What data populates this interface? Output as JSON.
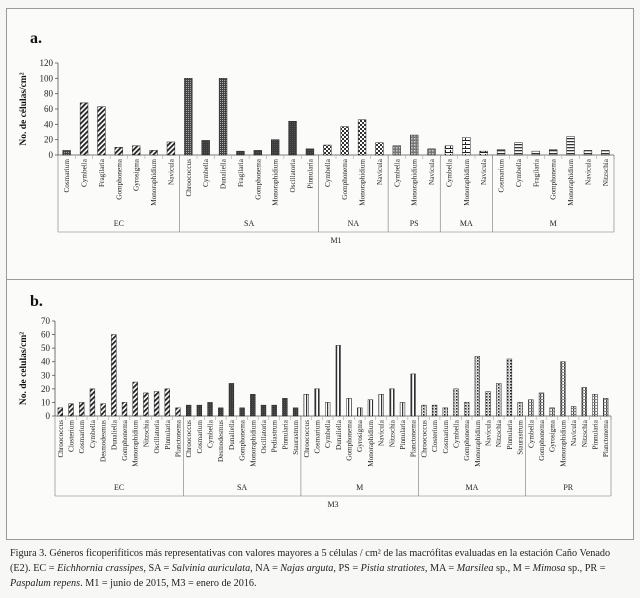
{
  "chart_data": [
    {
      "type": "bar",
      "panel_label": "a.",
      "ylabel": "No. de células/cm²",
      "ylim": [
        0,
        120
      ],
      "yticks": [
        0,
        20,
        40,
        60,
        80,
        100,
        120
      ],
      "grid": false,
      "outer_group": "M1",
      "groups": [
        {
          "name": "EC",
          "bars": [
            {
              "label": "Cosmarium",
              "value": 6,
              "pattern": "dots"
            },
            {
              "label": "Cymbella",
              "value": 68,
              "pattern": "diagonal"
            },
            {
              "label": "Fragilaria",
              "value": 63,
              "pattern": "diagonal"
            },
            {
              "label": "Gomphonema",
              "value": 10,
              "pattern": "diagonal"
            },
            {
              "label": "Gyrosigma",
              "value": 12,
              "pattern": "diagonal"
            },
            {
              "label": "Monoraphidium",
              "value": 6,
              "pattern": "diagonal"
            },
            {
              "label": "Navicula",
              "value": 17,
              "pattern": "diagonal"
            }
          ]
        },
        {
          "name": "SA",
          "bars": [
            {
              "label": "Chroococcus",
              "value": 100,
              "pattern": "dots"
            },
            {
              "label": "Cymbella",
              "value": 19,
              "pattern": "solid"
            },
            {
              "label": "Dunaliella",
              "value": 100,
              "pattern": "dots"
            },
            {
              "label": "Fragilaria",
              "value": 5,
              "pattern": "solid"
            },
            {
              "label": "Gomphonema",
              "value": 6,
              "pattern": "solid"
            },
            {
              "label": "Monoraphidium",
              "value": 20,
              "pattern": "solid"
            },
            {
              "label": "Oscillatoria",
              "value": 44,
              "pattern": "solid"
            },
            {
              "label": "Pinnularia",
              "value": 8,
              "pattern": "solid"
            }
          ]
        },
        {
          "name": "NA",
          "bars": [
            {
              "label": "Cymbella",
              "value": 13,
              "pattern": "checker"
            },
            {
              "label": "Gomphonema",
              "value": 37,
              "pattern": "checker"
            },
            {
              "label": "Monoraphidium",
              "value": 46,
              "pattern": "checker"
            },
            {
              "label": "Navicula",
              "value": 16,
              "pattern": "checker"
            }
          ]
        },
        {
          "name": "PS",
          "bars": [
            {
              "label": "Cymbella",
              "value": 12,
              "pattern": "grid"
            },
            {
              "label": "Monoraphidium",
              "value": 26,
              "pattern": "grid"
            },
            {
              "label": "Navicula",
              "value": 8,
              "pattern": "grid"
            }
          ]
        },
        {
          "name": "MA",
          "bars": [
            {
              "label": "Cymbella",
              "value": 12,
              "pattern": "brick"
            },
            {
              "label": "Monoraphidium",
              "value": 23,
              "pattern": "brick"
            },
            {
              "label": "Navicula",
              "value": 5,
              "pattern": "brick"
            }
          ]
        },
        {
          "name": "M",
          "bars": [
            {
              "label": "Cosmarium",
              "value": 7,
              "pattern": "hlines"
            },
            {
              "label": "Cymbella",
              "value": 16,
              "pattern": "hlines"
            },
            {
              "label": "Fragilaria",
              "value": 5,
              "pattern": "hlines"
            },
            {
              "label": "Gomphonema",
              "value": 7,
              "pattern": "hlines"
            },
            {
              "label": "Monoraphidium",
              "value": 24,
              "pattern": "hlines"
            },
            {
              "label": "Navicula",
              "value": 6,
              "pattern": "hlines"
            },
            {
              "label": "Nitzschia",
              "value": 6,
              "pattern": "hlines"
            }
          ]
        }
      ]
    },
    {
      "type": "bar",
      "panel_label": "b.",
      "ylabel": "No. de celulas/cm²",
      "ylim": [
        0,
        70
      ],
      "yticks": [
        0,
        10,
        20,
        30,
        40,
        50,
        60,
        70
      ],
      "grid": false,
      "outer_group": "M3",
      "groups": [
        {
          "name": "EC",
          "bars": [
            {
              "label": "Chroococcus",
              "value": 6,
              "pattern": "diagonal"
            },
            {
              "label": "Closterium",
              "value": 9,
              "pattern": "diagonal"
            },
            {
              "label": "Cosmarium",
              "value": 10,
              "pattern": "diagonal"
            },
            {
              "label": "Cymbella",
              "value": 20,
              "pattern": "diagonal"
            },
            {
              "label": "Desmodesmus",
              "value": 9,
              "pattern": "diagonal"
            },
            {
              "label": "Dunaliella",
              "value": 60,
              "pattern": "diagonal"
            },
            {
              "label": "Gomphonema",
              "value": 10,
              "pattern": "diagonal"
            },
            {
              "label": "Monoraphidium",
              "value": 25,
              "pattern": "diagonal"
            },
            {
              "label": "Nitzschia",
              "value": 17,
              "pattern": "diagonal"
            },
            {
              "label": "Oscillatoria",
              "value": 18,
              "pattern": "diagonal"
            },
            {
              "label": "Pinnularia",
              "value": 20,
              "pattern": "diagonal"
            },
            {
              "label": "Planctonema",
              "value": 6,
              "pattern": "diagonal"
            }
          ]
        },
        {
          "name": "SA",
          "bars": [
            {
              "label": "Chroococcus",
              "value": 8,
              "pattern": "solid"
            },
            {
              "label": "Cosmarium",
              "value": 8,
              "pattern": "solid"
            },
            {
              "label": "Cymbella",
              "value": 10,
              "pattern": "solid"
            },
            {
              "label": "Desmodesmus",
              "value": 6,
              "pattern": "solid"
            },
            {
              "label": "Dunaliella",
              "value": 24,
              "pattern": "solid"
            },
            {
              "label": "Gomphonema",
              "value": 6,
              "pattern": "solid"
            },
            {
              "label": "Monoraphidium",
              "value": 16,
              "pattern": "solid"
            },
            {
              "label": "Oscillatoria",
              "value": 8,
              "pattern": "solid"
            },
            {
              "label": "Pediastrum",
              "value": 8,
              "pattern": "solid"
            },
            {
              "label": "Pinnularia",
              "value": 13,
              "pattern": "solid"
            },
            {
              "label": "Staurastrum",
              "value": 6,
              "pattern": "solid"
            }
          ]
        },
        {
          "name": "M",
          "bars": [
            {
              "label": "Chroococcus",
              "value": 16,
              "pattern": "vlines"
            },
            {
              "label": "Cosmarium",
              "value": 20,
              "pattern": "vlines"
            },
            {
              "label": "Cymbella",
              "value": 10,
              "pattern": "vlines"
            },
            {
              "label": "Dunaliella",
              "value": 52,
              "pattern": "vlines"
            },
            {
              "label": "Gomphonema",
              "value": 13,
              "pattern": "vlines"
            },
            {
              "label": "Gyrosigma",
              "value": 6,
              "pattern": "vlines"
            },
            {
              "label": "Monoraphidium",
              "value": 12,
              "pattern": "vlines"
            },
            {
              "label": "Navicula",
              "value": 16,
              "pattern": "vlines"
            },
            {
              "label": "Nitzschia",
              "value": 20,
              "pattern": "vlines"
            },
            {
              "label": "Pinnularia",
              "value": 10,
              "pattern": "vlines"
            },
            {
              "label": "Planctonema",
              "value": 31,
              "pattern": "vlines"
            }
          ]
        },
        {
          "name": "MA",
          "bars": [
            {
              "label": "Chroococcus",
              "value": 8,
              "pattern": "stipple"
            },
            {
              "label": "Closterium",
              "value": 8,
              "pattern": "stipple"
            },
            {
              "label": "Cosmarium",
              "value": 6,
              "pattern": "stipple"
            },
            {
              "label": "Cymbella",
              "value": 20,
              "pattern": "stipple"
            },
            {
              "label": "Gomphonema",
              "value": 10,
              "pattern": "stipple"
            },
            {
              "label": "Monoraphidium",
              "value": 44,
              "pattern": "stipple"
            },
            {
              "label": "Navicula",
              "value": 18,
              "pattern": "stipple"
            },
            {
              "label": "Nitzschia",
              "value": 24,
              "pattern": "stipple"
            },
            {
              "label": "Pinnularia",
              "value": 42,
              "pattern": "stipple"
            },
            {
              "label": "Staurastrum",
              "value": 10,
              "pattern": "stipple"
            }
          ]
        },
        {
          "name": "PR",
          "bars": [
            {
              "label": "Cymbella",
              "value": 12,
              "pattern": "dense"
            },
            {
              "label": "Gomphonema",
              "value": 17,
              "pattern": "dense"
            },
            {
              "label": "Gyrosigma",
              "value": 6,
              "pattern": "dense"
            },
            {
              "label": "Monoraphidium",
              "value": 40,
              "pattern": "dense"
            },
            {
              "label": "Navicula",
              "value": 7,
              "pattern": "dense"
            },
            {
              "label": "Nitzschia",
              "value": 21,
              "pattern": "dense"
            },
            {
              "label": "Pinnularia",
              "value": 16,
              "pattern": "dense"
            },
            {
              "label": "Planctonema",
              "value": 13,
              "pattern": "dense"
            }
          ]
        }
      ]
    }
  ],
  "caption": {
    "p1": "Figura 3. Géneros ficoperifíticos más representativas con valores mayores a 5 células / cm² de las macrófitas evaluadas en la estación Caño Venado (E2). EC = ",
    "ec": "Eichhornia crassipes",
    "p2": ", SA = ",
    "sa": "Salvinia auriculata",
    "p3": ", NA = ",
    "na": "Najas arguta",
    "p4": ", PS = ",
    "ps": "Pistia stratiotes",
    "p5": ", MA = ",
    "ma": "Marsilea",
    "p6": " sp., M = ",
    "m": "Mimosa",
    "p7": " sp., PR = ",
    "pr": "Paspalum repens",
    "p8": ". M1 = junio de 2015, M3 = enero de 2016."
  }
}
